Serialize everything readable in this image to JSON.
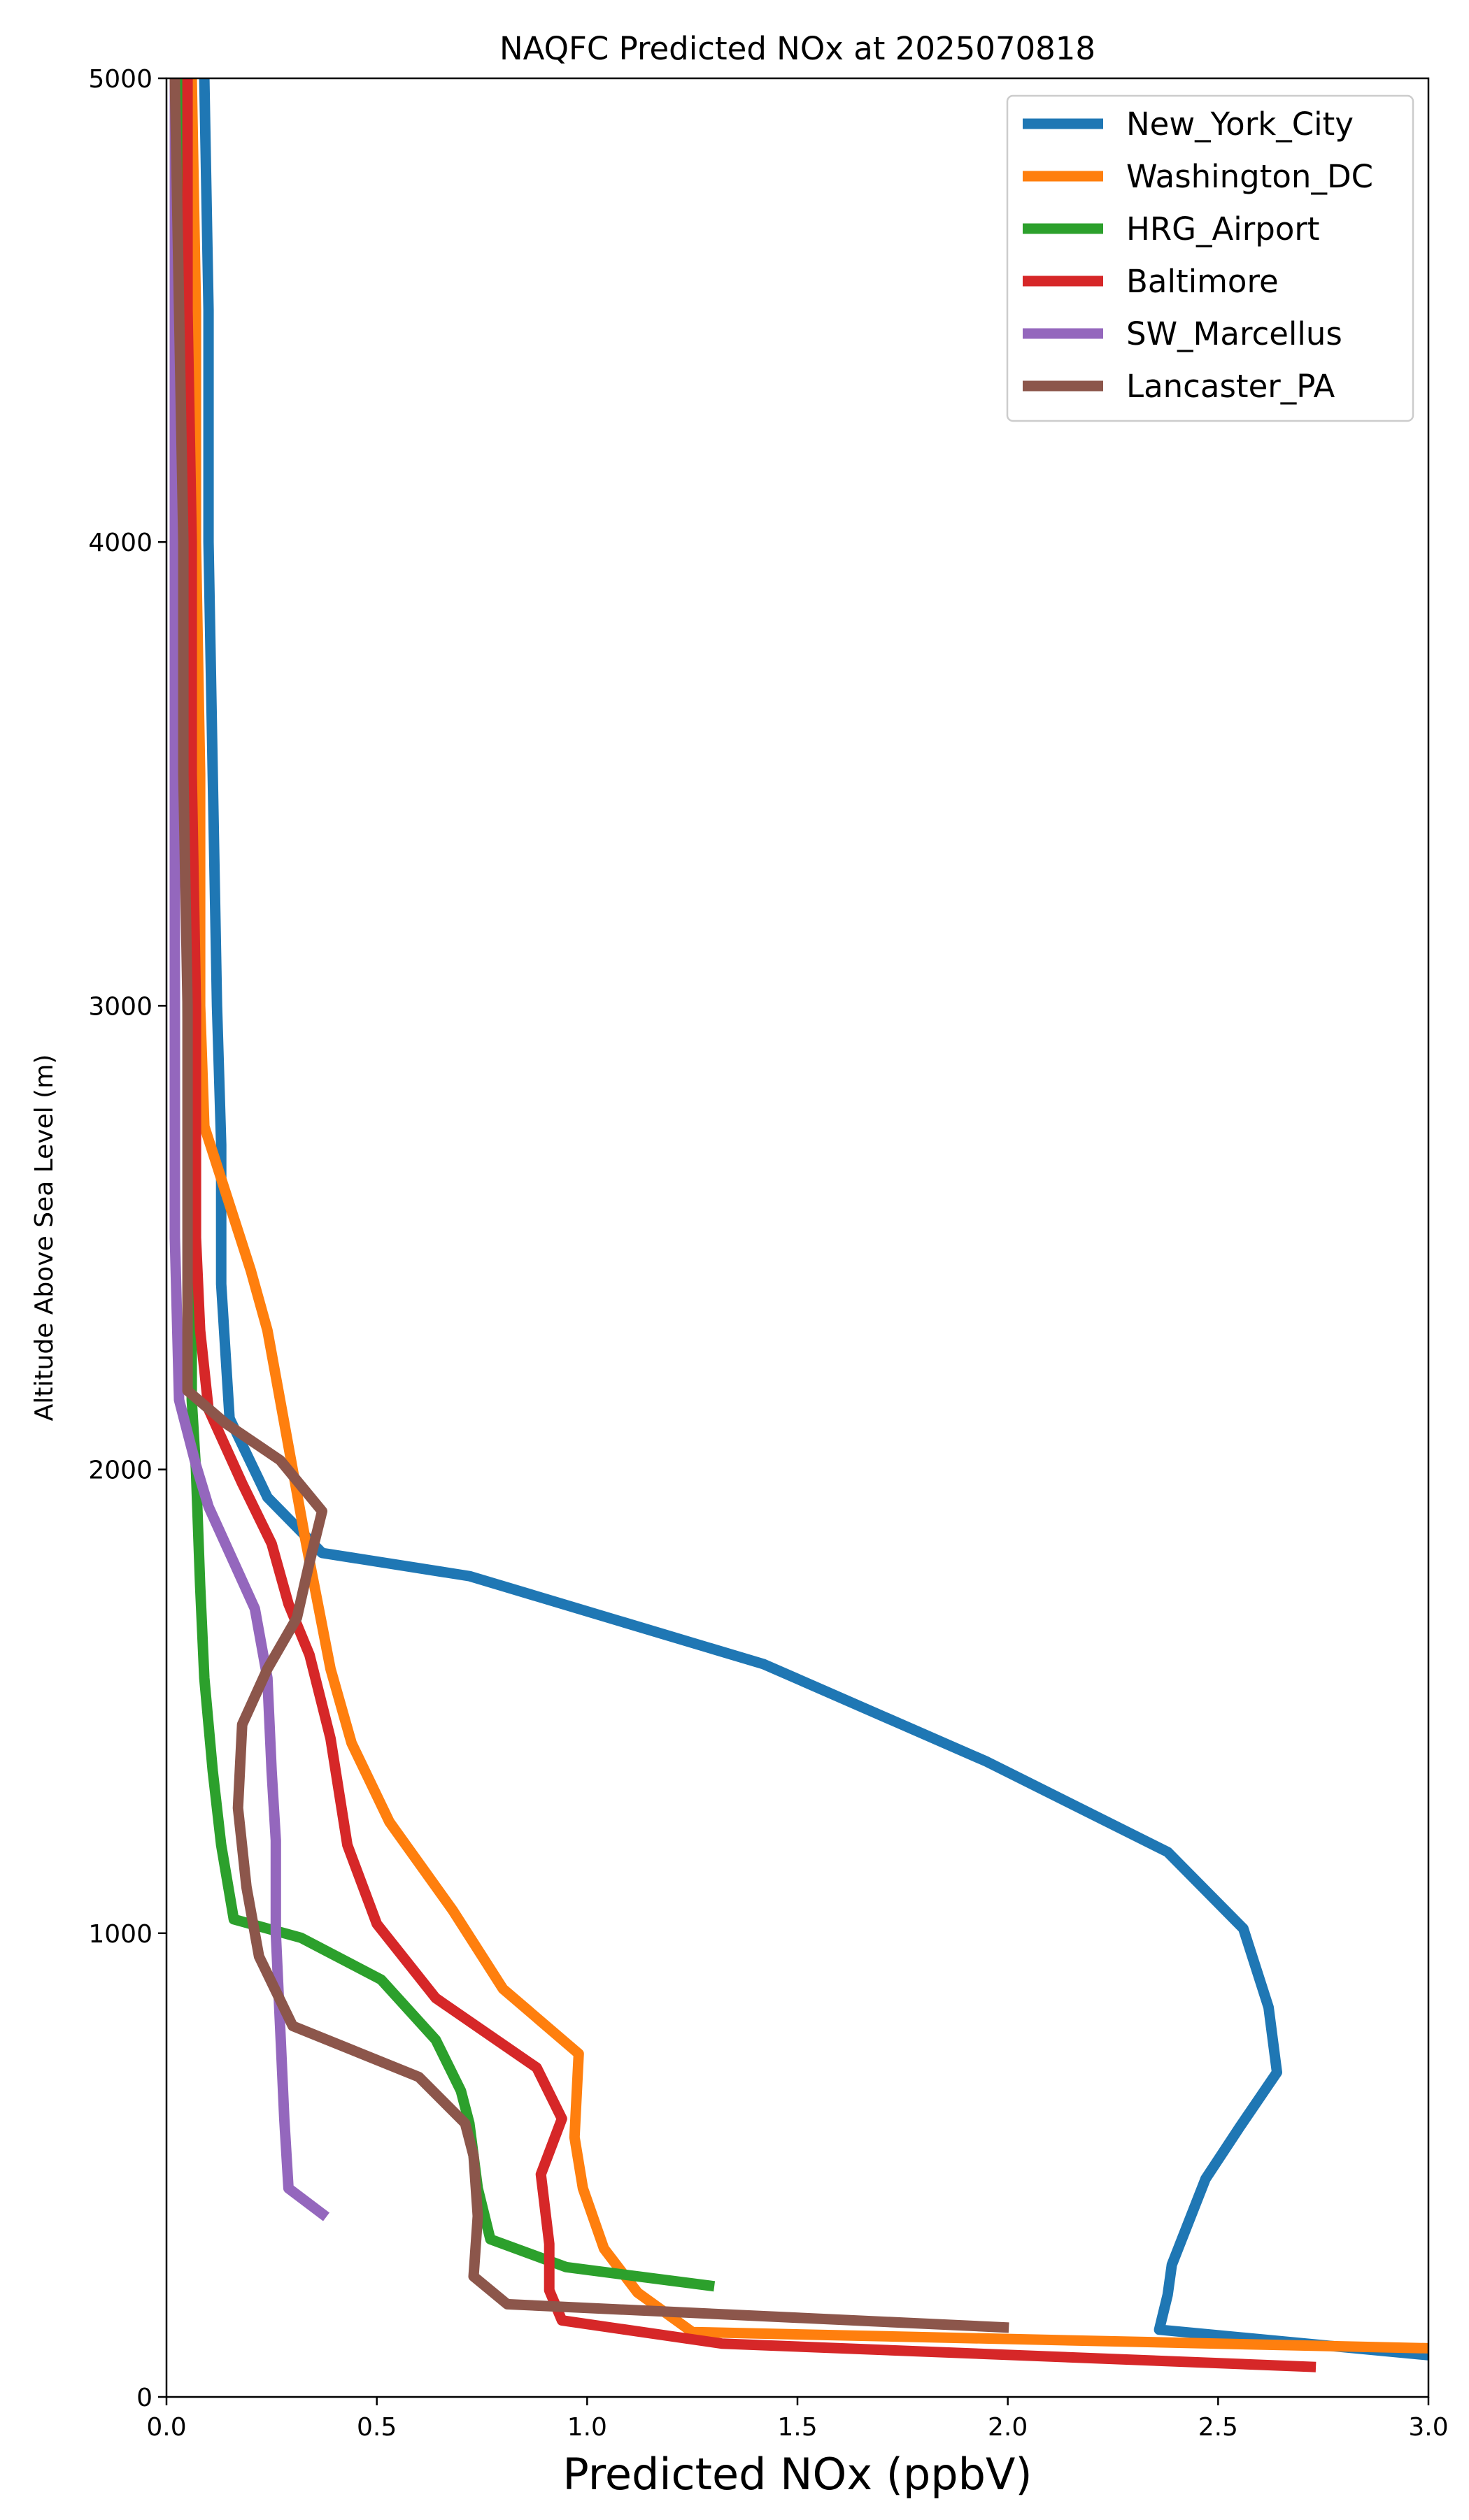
{
  "chart_data": {
    "type": "line",
    "title": "NAQFC Predicted NOx at 2025070818",
    "xlabel": "Predicted NOx (ppbV)",
    "ylabel": "Altitude Above Sea Level (m)",
    "xlim": [
      0.0,
      3.0
    ],
    "ylim": [
      0,
      5000
    ],
    "x_ticks": [
      "0.0",
      "0.5",
      "1.0",
      "1.5",
      "2.0",
      "2.5",
      "3.0"
    ],
    "y_ticks": [
      "0",
      "1000",
      "2000",
      "3000",
      "4000",
      "5000"
    ],
    "grid": false,
    "legend_position": "top-right",
    "series": [
      {
        "name": "New_York_City",
        "color": "#1f77b4",
        "points": [
          [
            3.0,
            90
          ],
          [
            2.36,
            145
          ],
          [
            2.38,
            220
          ],
          [
            2.39,
            285
          ],
          [
            2.47,
            470
          ],
          [
            2.55,
            580
          ],
          [
            2.64,
            700
          ],
          [
            2.62,
            840
          ],
          [
            2.56,
            1010
          ],
          [
            2.38,
            1175
          ],
          [
            1.95,
            1370
          ],
          [
            1.42,
            1580
          ],
          [
            0.72,
            1770
          ],
          [
            0.37,
            1820
          ],
          [
            0.24,
            1940
          ],
          [
            0.15,
            2110
          ],
          [
            0.13,
            2400
          ],
          [
            0.13,
            2700
          ],
          [
            0.12,
            3000
          ],
          [
            0.11,
            3500
          ],
          [
            0.1,
            4000
          ],
          [
            0.1,
            4500
          ],
          [
            0.09,
            5000
          ]
        ]
      },
      {
        "name": "Washington_DC",
        "color": "#ff7f0e",
        "points": [
          [
            3.0,
            105
          ],
          [
            1.25,
            140
          ],
          [
            1.12,
            225
          ],
          [
            1.04,
            320
          ],
          [
            0.99,
            450
          ],
          [
            0.97,
            560
          ],
          [
            0.98,
            740
          ],
          [
            0.8,
            880
          ],
          [
            0.68,
            1050
          ],
          [
            0.53,
            1240
          ],
          [
            0.44,
            1410
          ],
          [
            0.39,
            1570
          ],
          [
            0.33,
            1850
          ],
          [
            0.29,
            2050
          ],
          [
            0.24,
            2300
          ],
          [
            0.2,
            2430
          ],
          [
            0.09,
            2740
          ],
          [
            0.08,
            3000
          ],
          [
            0.08,
            3500
          ],
          [
            0.07,
            4000
          ],
          [
            0.07,
            4500
          ],
          [
            0.06,
            5000
          ]
        ]
      },
      {
        "name": "HRG_Airport",
        "color": "#2ca02c",
        "points": [
          [
            1.29,
            240
          ],
          [
            0.95,
            280
          ],
          [
            0.77,
            340
          ],
          [
            0.74,
            450
          ],
          [
            0.72,
            590
          ],
          [
            0.7,
            660
          ],
          [
            0.64,
            770
          ],
          [
            0.51,
            900
          ],
          [
            0.32,
            990
          ],
          [
            0.16,
            1030
          ],
          [
            0.13,
            1190
          ],
          [
            0.11,
            1350
          ],
          [
            0.09,
            1550
          ],
          [
            0.08,
            1750
          ],
          [
            0.07,
            2000
          ],
          [
            0.06,
            2150
          ],
          [
            0.06,
            2500
          ],
          [
            0.05,
            3000
          ],
          [
            0.05,
            3500
          ],
          [
            0.05,
            4000
          ],
          [
            0.04,
            4500
          ],
          [
            0.04,
            5000
          ]
        ]
      },
      {
        "name": "Baltimore",
        "color": "#d62728",
        "points": [
          [
            2.72,
            65
          ],
          [
            1.32,
            115
          ],
          [
            0.94,
            165
          ],
          [
            0.91,
            230
          ],
          [
            0.91,
            330
          ],
          [
            0.89,
            480
          ],
          [
            0.94,
            600
          ],
          [
            0.88,
            710
          ],
          [
            0.64,
            860
          ],
          [
            0.5,
            1020
          ],
          [
            0.43,
            1190
          ],
          [
            0.39,
            1420
          ],
          [
            0.34,
            1600
          ],
          [
            0.29,
            1710
          ],
          [
            0.25,
            1840
          ],
          [
            0.18,
            1970
          ],
          [
            0.1,
            2130
          ],
          [
            0.08,
            2300
          ],
          [
            0.07,
            2500
          ],
          [
            0.07,
            3000
          ],
          [
            0.06,
            3500
          ],
          [
            0.06,
            4000
          ],
          [
            0.05,
            4500
          ],
          [
            0.05,
            5000
          ]
        ]
      },
      {
        "name": "SW_Marcellus",
        "color": "#9467bd",
        "points": [
          [
            0.37,
            395
          ],
          [
            0.29,
            450
          ],
          [
            0.28,
            600
          ],
          [
            0.27,
            800
          ],
          [
            0.26,
            1000
          ],
          [
            0.26,
            1200
          ],
          [
            0.25,
            1350
          ],
          [
            0.24,
            1550
          ],
          [
            0.21,
            1700
          ],
          [
            0.16,
            1800
          ],
          [
            0.1,
            1920
          ],
          [
            0.07,
            2010
          ],
          [
            0.03,
            2150
          ],
          [
            0.02,
            2500
          ],
          [
            0.02,
            3000
          ],
          [
            0.02,
            3500
          ],
          [
            0.02,
            4000
          ],
          [
            0.02,
            4500
          ],
          [
            0.02,
            5000
          ]
        ]
      },
      {
        "name": "Lancaster_PA",
        "color": "#8c564b",
        "points": [
          [
            1.99,
            150
          ],
          [
            0.81,
            200
          ],
          [
            0.73,
            260
          ],
          [
            0.74,
            390
          ],
          [
            0.73,
            520
          ],
          [
            0.71,
            590
          ],
          [
            0.6,
            690
          ],
          [
            0.3,
            800
          ],
          [
            0.22,
            950
          ],
          [
            0.19,
            1100
          ],
          [
            0.17,
            1270
          ],
          [
            0.18,
            1450
          ],
          [
            0.24,
            1570
          ],
          [
            0.31,
            1680
          ],
          [
            0.34,
            1800
          ],
          [
            0.37,
            1910
          ],
          [
            0.27,
            2020
          ],
          [
            0.14,
            2100
          ],
          [
            0.05,
            2170
          ],
          [
            0.05,
            2500
          ],
          [
            0.05,
            3000
          ],
          [
            0.04,
            3500
          ],
          [
            0.04,
            4000
          ],
          [
            0.03,
            4500
          ],
          [
            0.02,
            5000
          ]
        ]
      }
    ]
  }
}
